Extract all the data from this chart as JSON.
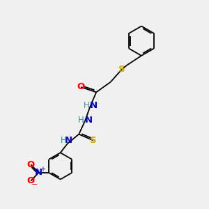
{
  "background_color": "#f0f0f0",
  "bond_color": "#000000",
  "atom_colors": {
    "O": "#ff0000",
    "N": "#0000cd",
    "S": "#ccaa00",
    "H": "#2f8f8f",
    "C": "#000000"
  },
  "figsize": [
    3.0,
    3.0
  ],
  "dpi": 100
}
